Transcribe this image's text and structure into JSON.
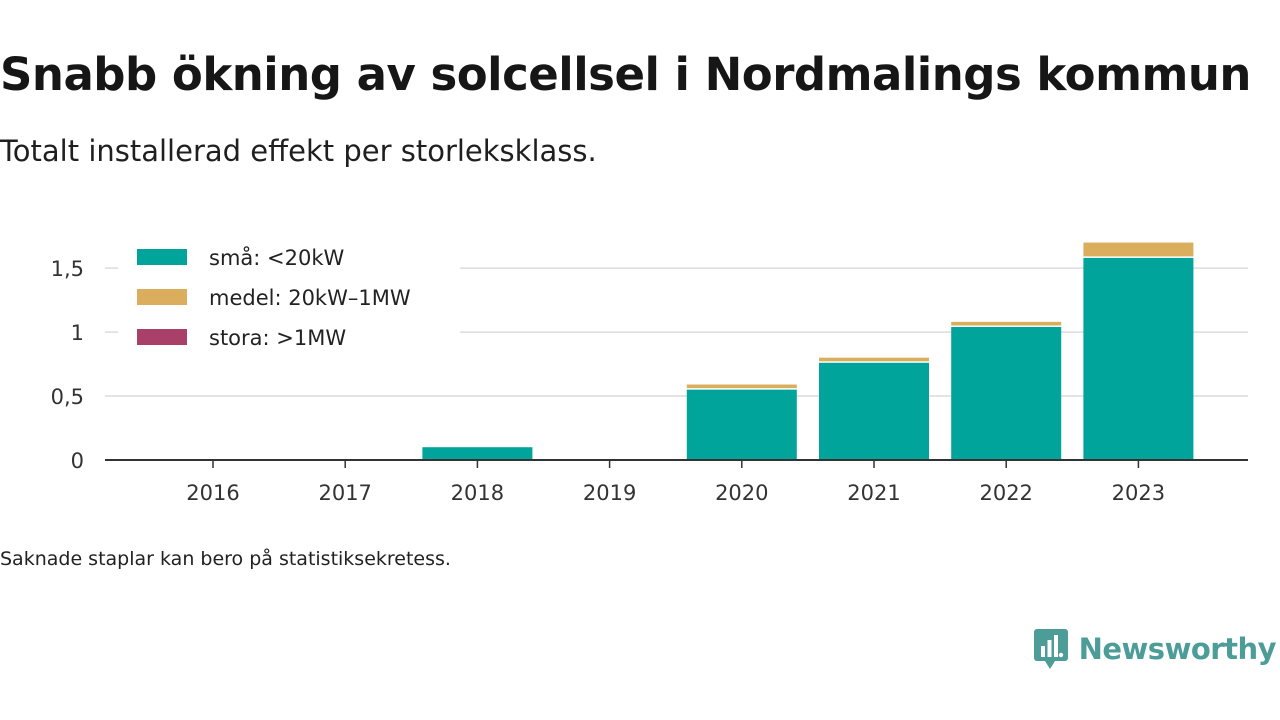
{
  "title": "Snabb ökning av solcellsel i Nordmalings kommun",
  "subtitle": "Totalt installerad effekt per storleksklass.",
  "note": "Saknade staplar kan bero på statistiksekretess.",
  "brand": {
    "name": "Newsworthy",
    "icon": "newsworthy-logo-icon",
    "color": "#4c9c98"
  },
  "chart_data": {
    "type": "bar",
    "stacked": true,
    "categories": [
      "2016",
      "2017",
      "2018",
      "2019",
      "2020",
      "2021",
      "2022",
      "2023"
    ],
    "series": [
      {
        "name": "små: <20kW",
        "color": "#00a49a",
        "values": [
          0,
          0,
          0.1,
          0,
          0.55,
          0.76,
          1.04,
          1.58
        ]
      },
      {
        "name": "medel: 20kW–1MW",
        "color": "#dbae5d",
        "values": [
          0,
          0,
          0,
          0,
          0.04,
          0.04,
          0.04,
          0.12
        ]
      },
      {
        "name": "stora: >1MW",
        "color": "#a8406a",
        "values": [
          0,
          0,
          0,
          0,
          0,
          0,
          0,
          0
        ]
      }
    ],
    "y_ticks": [
      0,
      0.5,
      1,
      1.5
    ],
    "y_tick_labels": [
      "0",
      "0,5",
      "1",
      "1,5"
    ],
    "ylim": [
      0,
      1.72
    ],
    "grid": true,
    "legend_position": "top-left",
    "xlabel": "",
    "ylabel": ""
  }
}
